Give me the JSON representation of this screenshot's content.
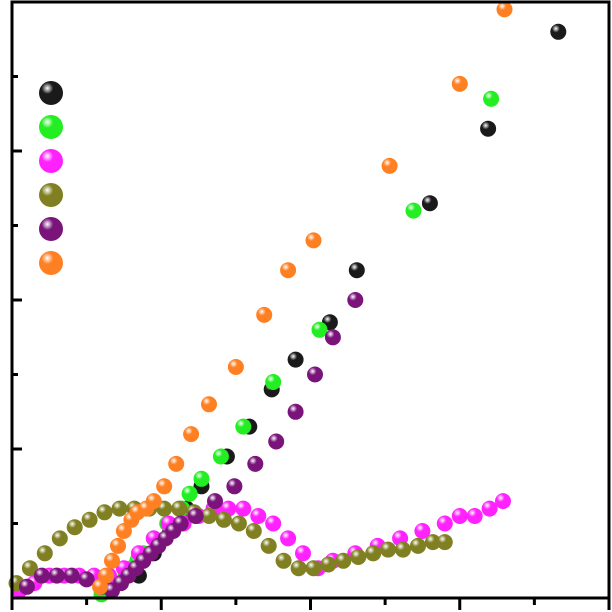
{
  "chart_data": {
    "type": "scatter",
    "xlim": [
      0,
      40
    ],
    "ylim": [
      0,
      80
    ],
    "xlabel": "",
    "ylabel": "",
    "grid": false,
    "legend": {
      "position": "top-left",
      "show_text": false
    },
    "series": [
      {
        "color": "#1a1a1a",
        "points": [
          [
            8.5,
            3
          ],
          [
            9.5,
            6
          ],
          [
            10.6,
            9
          ],
          [
            11.7,
            12
          ],
          [
            12.7,
            15
          ],
          [
            14.4,
            19
          ],
          [
            15.9,
            23
          ],
          [
            17.4,
            28
          ],
          [
            19.0,
            32
          ],
          [
            21.3,
            37
          ],
          [
            23.1,
            44
          ],
          [
            28.0,
            53
          ],
          [
            31.9,
            63
          ],
          [
            36.6,
            76
          ]
        ]
      },
      {
        "color": "#22ee22",
        "points": [
          [
            6.0,
            0.5
          ],
          [
            6.6,
            1
          ],
          [
            7.2,
            2
          ],
          [
            7.6,
            3
          ],
          [
            8.0,
            4
          ],
          [
            8.4,
            5
          ],
          [
            8.8,
            6
          ],
          [
            9.5,
            8
          ],
          [
            10.4,
            10
          ],
          [
            11.4,
            12
          ],
          [
            11.9,
            14
          ],
          [
            12.7,
            16
          ],
          [
            14.0,
            19
          ],
          [
            15.5,
            23
          ],
          [
            17.5,
            29
          ],
          [
            20.6,
            36
          ],
          [
            26.9,
            52
          ],
          [
            32.1,
            67
          ]
        ]
      },
      {
        "color": "#ff22ff",
        "points": [
          [
            0.5,
            1
          ],
          [
            1.5,
            2
          ],
          [
            2.5,
            3
          ],
          [
            3.5,
            3
          ],
          [
            4.5,
            3
          ],
          [
            5.5,
            3
          ],
          [
            6.5,
            3
          ],
          [
            7.5,
            4
          ],
          [
            8.5,
            6
          ],
          [
            9.5,
            8
          ],
          [
            10.5,
            10
          ],
          [
            11.5,
            10
          ],
          [
            12.5,
            11
          ],
          [
            13.5,
            12
          ],
          [
            14.5,
            12
          ],
          [
            15.5,
            12
          ],
          [
            16.5,
            11
          ],
          [
            17.5,
            10
          ],
          [
            18.5,
            8
          ],
          [
            19.5,
            6
          ],
          [
            20.5,
            4
          ],
          [
            21.5,
            5
          ],
          [
            23.0,
            6
          ],
          [
            24.5,
            7
          ],
          [
            26.0,
            8
          ],
          [
            27.5,
            9
          ],
          [
            29.0,
            10
          ],
          [
            30.0,
            11
          ],
          [
            31.0,
            11
          ],
          [
            32.0,
            12
          ],
          [
            32.9,
            13
          ]
        ]
      },
      {
        "color": "#808022",
        "points": [
          [
            0.3,
            2
          ],
          [
            1.2,
            4
          ],
          [
            2.2,
            6
          ],
          [
            3.2,
            8
          ],
          [
            4.2,
            9.5
          ],
          [
            5.2,
            10.5
          ],
          [
            6.2,
            11.5
          ],
          [
            7.2,
            12
          ],
          [
            8.2,
            12
          ],
          [
            9.2,
            12
          ],
          [
            10.2,
            12
          ],
          [
            11.2,
            12
          ],
          [
            12.2,
            11.5
          ],
          [
            13.2,
            11
          ],
          [
            14.2,
            10.5
          ],
          [
            15.2,
            10
          ],
          [
            16.2,
            9
          ],
          [
            17.2,
            7
          ],
          [
            18.2,
            5
          ],
          [
            19.2,
            4
          ],
          [
            20.2,
            4
          ],
          [
            21.2,
            4.5
          ],
          [
            22.2,
            5
          ],
          [
            23.2,
            5.5
          ],
          [
            24.2,
            6
          ],
          [
            25.2,
            6.5
          ],
          [
            26.2,
            6.5
          ],
          [
            27.2,
            7
          ],
          [
            28.2,
            7.5
          ],
          [
            29.0,
            7.5
          ]
        ]
      },
      {
        "color": "#7a147a",
        "points": [
          [
            1.0,
            1.5
          ],
          [
            2.0,
            3
          ],
          [
            3.0,
            3
          ],
          [
            4.0,
            3
          ],
          [
            5.0,
            2.5
          ],
          [
            6.0,
            1.5
          ],
          [
            6.7,
            1
          ],
          [
            7.3,
            2
          ],
          [
            7.8,
            3
          ],
          [
            8.3,
            4
          ],
          [
            8.8,
            5
          ],
          [
            9.3,
            6
          ],
          [
            9.8,
            7
          ],
          [
            10.3,
            8
          ],
          [
            10.8,
            9
          ],
          [
            11.3,
            10
          ],
          [
            12.3,
            11
          ],
          [
            13.6,
            13
          ],
          [
            14.9,
            15
          ],
          [
            16.3,
            18
          ],
          [
            17.7,
            21
          ],
          [
            19.0,
            25
          ],
          [
            20.3,
            30
          ],
          [
            21.5,
            35
          ],
          [
            23.0,
            40
          ]
        ]
      },
      {
        "color": "#ff8022",
        "points": [
          [
            5.9,
            1.5
          ],
          [
            6.3,
            3
          ],
          [
            6.7,
            5
          ],
          [
            7.1,
            7
          ],
          [
            7.5,
            9
          ],
          [
            8.0,
            10.5
          ],
          [
            8.4,
            11.5
          ],
          [
            9.0,
            12
          ],
          [
            9.5,
            13
          ],
          [
            10.2,
            15
          ],
          [
            11.0,
            18
          ],
          [
            12.0,
            22
          ],
          [
            13.2,
            26
          ],
          [
            15.0,
            31
          ],
          [
            16.9,
            38
          ],
          [
            18.5,
            44
          ],
          [
            20.2,
            48
          ],
          [
            25.3,
            58
          ],
          [
            30.0,
            69
          ],
          [
            33.0,
            79
          ]
        ]
      }
    ]
  }
}
